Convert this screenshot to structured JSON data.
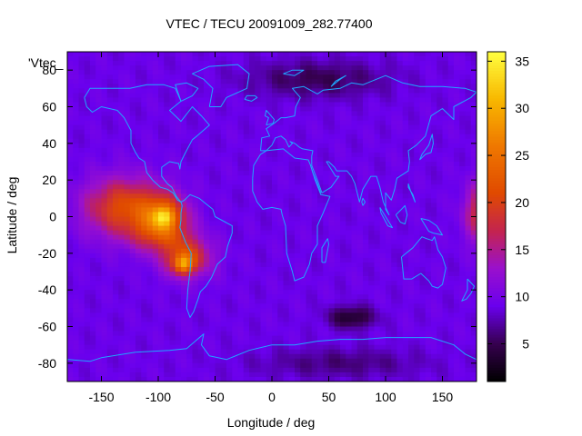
{
  "chart_data": {
    "type": "heatmap",
    "title": "VTEC / TECU 20091009_282.77400",
    "series_label": "'Vtec_",
    "xlabel": "Longitude / deg",
    "ylabel": "Latitude / deg",
    "xlim": [
      -180,
      180
    ],
    "ylim": [
      -90,
      90
    ],
    "x_ticks": [
      -150,
      -100,
      -50,
      0,
      50,
      100,
      150
    ],
    "y_ticks": [
      -80,
      -60,
      -40,
      -20,
      0,
      20,
      40,
      60,
      80
    ],
    "colorbar": {
      "range": [
        1,
        36
      ],
      "ticks": [
        5,
        10,
        15,
        20,
        25,
        30,
        35
      ],
      "palette": [
        {
          "v": 1,
          "color": "#000000"
        },
        {
          "v": 5,
          "color": "#36004f"
        },
        {
          "v": 9,
          "color": "#6a00ee"
        },
        {
          "v": 13,
          "color": "#9a10cc"
        },
        {
          "v": 17,
          "color": "#c4244e"
        },
        {
          "v": 21,
          "color": "#e04a00"
        },
        {
          "v": 26,
          "color": "#ef7800"
        },
        {
          "v": 31,
          "color": "#f8b800"
        },
        {
          "v": 36,
          "color": "#ffff40"
        }
      ]
    },
    "field": {
      "background": 9,
      "features": [
        {
          "lon": -130,
          "lat": 5,
          "slon": 35,
          "slat": 16,
          "amp": 12
        },
        {
          "lon": -95,
          "lat": 0,
          "slon": 20,
          "slat": 12,
          "amp": 12
        },
        {
          "lon": -95,
          "lat": 0,
          "slon": 9,
          "slat": 5,
          "amp": 8
        },
        {
          "lon": -75,
          "lat": -22,
          "slon": 22,
          "slat": 11,
          "amp": 11
        },
        {
          "lon": -78,
          "lat": -26,
          "slon": 8,
          "slat": 5,
          "amp": 12
        },
        {
          "lon": -100,
          "lat": -10,
          "slon": 25,
          "slat": 10,
          "amp": 6
        },
        {
          "lon": 185,
          "lat": 2,
          "slon": 15,
          "slat": 16,
          "amp": 10
        },
        {
          "lon": 70,
          "lat": -55,
          "slon": 20,
          "slat": 6,
          "amp": -6
        },
        {
          "lon": 40,
          "lat": 75,
          "slon": 60,
          "slat": 10,
          "amp": -4
        },
        {
          "lon": 60,
          "lat": -80,
          "slon": 70,
          "slat": 8,
          "amp": -3
        }
      ]
    },
    "overlay": "coastlines",
    "overlay_color": "#1fa7ff"
  }
}
